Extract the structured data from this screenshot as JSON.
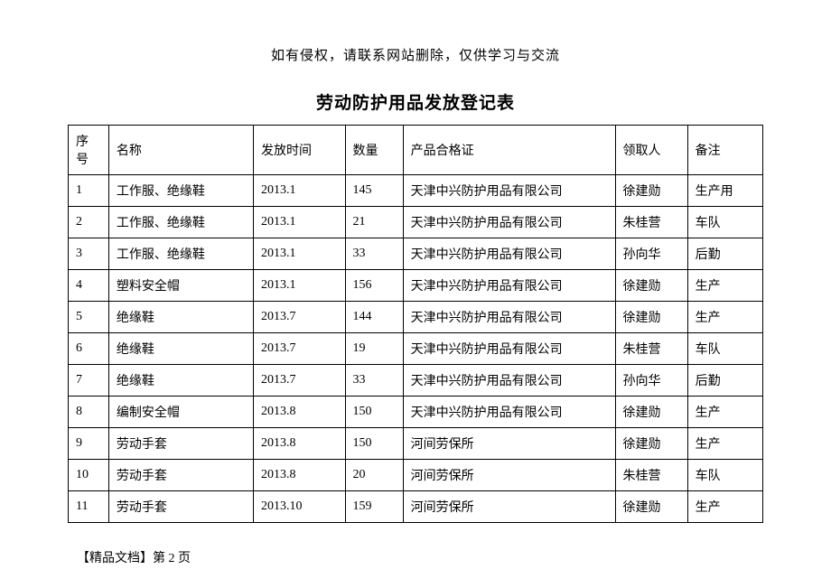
{
  "header_note": "如有侵权，请联系网站删除，仅供学习与交流",
  "title": "劳动防护用品发放登记表",
  "columns": [
    "序号",
    "名称",
    "发放时间",
    "数量",
    "产品合格证",
    "领取人",
    "备注"
  ],
  "rows": [
    [
      "1",
      "工作服、绝缘鞋",
      "2013.1",
      "145",
      "天津中兴防护用品有限公司",
      "徐建勋",
      "生产用"
    ],
    [
      "2",
      "工作服、绝缘鞋",
      "2013.1",
      "21",
      "天津中兴防护用品有限公司",
      "朱桂营",
      "车队"
    ],
    [
      "3",
      "工作服、绝缘鞋",
      "2013.1",
      "33",
      "天津中兴防护用品有限公司",
      "孙向华",
      "后勤"
    ],
    [
      "4",
      "塑料安全帽",
      "2013.1",
      "156",
      "天津中兴防护用品有限公司",
      "徐建勋",
      "生产"
    ],
    [
      "5",
      "绝缘鞋",
      "2013.7",
      "144",
      "天津中兴防护用品有限公司",
      "徐建勋",
      "生产"
    ],
    [
      "6",
      "绝缘鞋",
      "2013.7",
      "19",
      "天津中兴防护用品有限公司",
      "朱桂营",
      "车队"
    ],
    [
      "7",
      "绝缘鞋",
      "2013.7",
      "33",
      "天津中兴防护用品有限公司",
      "孙向华",
      "后勤"
    ],
    [
      "8",
      "编制安全帽",
      "2013.8",
      "150",
      "天津中兴防护用品有限公司",
      "徐建勋",
      "生产"
    ],
    [
      "9",
      "劳动手套",
      "2013.8",
      "150",
      "河间劳保所",
      "徐建勋",
      "生产"
    ],
    [
      "10",
      "劳动手套",
      "2013.8",
      "20",
      "河间劳保所",
      "朱桂营",
      "车队"
    ],
    [
      "11",
      "劳动手套",
      "2013.10",
      "159",
      "河间劳保所",
      "徐建勋",
      "生产"
    ]
  ],
  "footer": "【精品文档】第 2 页"
}
